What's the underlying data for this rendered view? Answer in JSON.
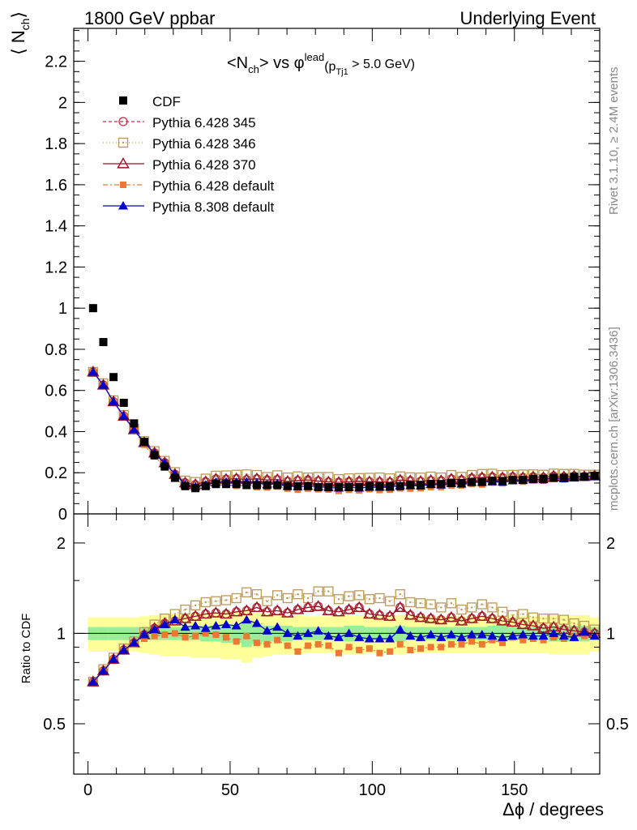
{
  "header": {
    "left": "1800 GeV ppbar",
    "right": "Underlying Event"
  },
  "side_labels": {
    "rivet": "Rivet 3.1.10, ≥ 2.4M events",
    "mcplots": "mcplots.cern.ch [arXiv:1306.3436]"
  },
  "chart_data": {
    "type": "scatter",
    "title": "<N_ch> vs φ^lead (p_Tj1 > 5.0 GeV)",
    "title_parts": {
      "a": "<N",
      "a_sub": "ch",
      "b": "> vs φ",
      "b_sup": "lead",
      "c": "(p",
      "c_sub": "Tj1",
      "d": " > 5.0 GeV)"
    },
    "ylabel": "⟨ N_ch ⟩",
    "ylabel_parts": {
      "main": "⟨ N",
      "sub": "ch",
      "close": "⟩"
    },
    "xlabel": "Δϕ / degrees",
    "ratio_ylabel": "Ratio to CDF",
    "xlim": [
      -5,
      180
    ],
    "ylim": [
      0,
      2.36
    ],
    "ratio_ylim": [
      0.34,
      2.5
    ],
    "ratio_log": true,
    "main_yticks": [
      "0",
      "0.2",
      "0.4",
      "0.6",
      "0.8",
      "1",
      "1.2",
      "1.4",
      "1.6",
      "1.8",
      "2",
      "2.2"
    ],
    "xticks": [
      "0",
      "50",
      "100",
      "150"
    ],
    "ratio_yticks": [
      "0.5",
      "1",
      "2"
    ],
    "x": [
      1.8,
      5.4,
      9.0,
      12.6,
      16.2,
      19.8,
      23.4,
      27.0,
      30.6,
      34.2,
      37.8,
      41.4,
      45.0,
      48.6,
      52.2,
      55.8,
      59.4,
      63.0,
      66.6,
      70.2,
      73.8,
      77.4,
      81.0,
      84.6,
      88.2,
      91.8,
      95.4,
      99.0,
      102.6,
      106.2,
      109.8,
      113.4,
      117.0,
      120.6,
      124.2,
      127.8,
      131.4,
      135.0,
      138.6,
      142.2,
      145.8,
      149.4,
      153.0,
      156.6,
      160.2,
      163.8,
      167.4,
      171.0,
      174.6,
      178.2
    ],
    "legend": {
      "position": "top-left",
      "entries": [
        "CDF",
        "Pythia 6.428 345",
        "Pythia 6.428 346",
        "Pythia 6.428 370",
        "Pythia 6.428 default",
        "Pythia 8.308 default"
      ]
    },
    "series": [
      {
        "name": "CDF",
        "color": "#000000",
        "marker": "filled-square",
        "values": [
          1.0,
          0.835,
          0.665,
          0.54,
          0.44,
          0.35,
          0.285,
          0.23,
          0.175,
          0.135,
          0.125,
          0.135,
          0.145,
          0.145,
          0.145,
          0.14,
          0.14,
          0.14,
          0.14,
          0.135,
          0.135,
          0.135,
          0.13,
          0.13,
          0.13,
          0.13,
          0.13,
          0.135,
          0.135,
          0.135,
          0.135,
          0.14,
          0.14,
          0.145,
          0.145,
          0.15,
          0.15,
          0.155,
          0.155,
          0.16,
          0.16,
          0.165,
          0.165,
          0.17,
          0.17,
          0.175,
          0.175,
          0.18,
          0.18,
          0.185
        ]
      },
      {
        "name": "Pythia 6.428 345",
        "color": "#bb3344",
        "marker": "open-circle",
        "dash": "4,3",
        "ratio": [
          0.69,
          0.75,
          0.82,
          0.88,
          0.93,
          0.99,
          1.04,
          1.08,
          1.1,
          1.12,
          1.14,
          1.16,
          1.17,
          1.16,
          1.18,
          1.19,
          1.22,
          1.18,
          1.19,
          1.17,
          1.2,
          1.22,
          1.23,
          1.19,
          1.18,
          1.2,
          1.22,
          1.16,
          1.15,
          1.14,
          1.22,
          1.15,
          1.13,
          1.12,
          1.11,
          1.13,
          1.1,
          1.12,
          1.14,
          1.12,
          1.1,
          1.09,
          1.07,
          1.06,
          1.04,
          1.05,
          1.03,
          1.02,
          1.01,
          1.0
        ]
      },
      {
        "name": "Pythia 6.428 346",
        "color": "#bb9955",
        "marker": "open-square-dot",
        "dash": "1,3",
        "ratio": [
          0.69,
          0.76,
          0.83,
          0.89,
          0.94,
          1.01,
          1.07,
          1.12,
          1.16,
          1.2,
          1.24,
          1.27,
          1.28,
          1.29,
          1.31,
          1.37,
          1.35,
          1.28,
          1.34,
          1.31,
          1.35,
          1.31,
          1.38,
          1.38,
          1.3,
          1.33,
          1.34,
          1.3,
          1.31,
          1.28,
          1.35,
          1.27,
          1.26,
          1.25,
          1.22,
          1.26,
          1.2,
          1.22,
          1.25,
          1.22,
          1.18,
          1.15,
          1.16,
          1.13,
          1.12,
          1.12,
          1.11,
          1.08,
          1.06,
          1.03
        ]
      },
      {
        "name": "Pythia 6.428 370",
        "color": "#991122",
        "marker": "open-triangle",
        "dash": "",
        "ratio": [
          0.69,
          0.75,
          0.82,
          0.88,
          0.93,
          0.99,
          1.04,
          1.08,
          1.1,
          1.12,
          1.14,
          1.16,
          1.17,
          1.16,
          1.18,
          1.19,
          1.22,
          1.18,
          1.19,
          1.17,
          1.2,
          1.22,
          1.23,
          1.19,
          1.18,
          1.2,
          1.22,
          1.16,
          1.15,
          1.14,
          1.22,
          1.15,
          1.13,
          1.12,
          1.11,
          1.13,
          1.1,
          1.12,
          1.14,
          1.12,
          1.1,
          1.09,
          1.07,
          1.06,
          1.04,
          1.05,
          1.03,
          1.02,
          1.01,
          1.0
        ]
      },
      {
        "name": "Pythia 6.428 default",
        "color": "#ee7733",
        "marker": "filled-small-square",
        "dash": "6,3,2,3",
        "ratio": [
          0.69,
          0.75,
          0.82,
          0.88,
          0.92,
          0.96,
          0.98,
          0.99,
          1.0,
          0.97,
          0.98,
          1.0,
          0.99,
          0.97,
          0.94,
          0.98,
          0.93,
          0.92,
          0.95,
          0.91,
          0.87,
          0.91,
          0.92,
          0.91,
          0.86,
          0.9,
          0.88,
          0.89,
          0.86,
          0.87,
          0.92,
          0.88,
          0.89,
          0.9,
          0.9,
          0.92,
          0.92,
          0.94,
          0.92,
          0.95,
          0.93,
          0.97,
          0.95,
          0.96,
          0.95,
          0.97,
          0.96,
          0.98,
          0.98,
          0.98
        ]
      },
      {
        "name": "Pythia 8.308 default",
        "color": "#0000cc",
        "marker": "filled-triangle",
        "dash": "",
        "ratio": [
          0.69,
          0.75,
          0.82,
          0.88,
          0.93,
          0.99,
          1.03,
          1.07,
          1.11,
          1.05,
          1.06,
          1.04,
          1.06,
          1.07,
          1.06,
          1.11,
          1.08,
          1.02,
          1.05,
          1.0,
          0.98,
          1.0,
          1.02,
          0.98,
          0.97,
          1.0,
          0.97,
          0.96,
          0.96,
          0.96,
          1.03,
          0.98,
          0.97,
          0.99,
          0.97,
          0.99,
          0.97,
          0.99,
          0.99,
          0.98,
          0.97,
          0.98,
          0.99,
          0.98,
          0.98,
          1.0,
          0.98,
          0.97,
          1.01,
          0.98
        ]
      }
    ],
    "ratio_band_inner": [
      0.05,
      0.05,
      0.05,
      0.05,
      0.05,
      0.05,
      0.05,
      0.05,
      0.05,
      0.05,
      0.05,
      0.06,
      0.06,
      0.07,
      0.07,
      0.1,
      0.08,
      0.06,
      0.06,
      0.06,
      0.05,
      0.05,
      0.05,
      0.05,
      0.05,
      0.06,
      0.06,
      0.05,
      0.05,
      0.05,
      0.06,
      0.05,
      0.05,
      0.05,
      0.05,
      0.05,
      0.05,
      0.05,
      0.05,
      0.06,
      0.06,
      0.05,
      0.05,
      0.05,
      0.05,
      0.06,
      0.06,
      0.06,
      0.06,
      0.05
    ],
    "ratio_band_outer": [
      0.13,
      0.13,
      0.13,
      0.13,
      0.13,
      0.14,
      0.15,
      0.16,
      0.16,
      0.16,
      0.17,
      0.17,
      0.17,
      0.18,
      0.18,
      0.2,
      0.17,
      0.16,
      0.15,
      0.15,
      0.15,
      0.14,
      0.14,
      0.14,
      0.14,
      0.15,
      0.15,
      0.14,
      0.14,
      0.14,
      0.15,
      0.14,
      0.14,
      0.14,
      0.14,
      0.14,
      0.14,
      0.14,
      0.14,
      0.14,
      0.14,
      0.14,
      0.14,
      0.14,
      0.14,
      0.15,
      0.15,
      0.15,
      0.15,
      0.13
    ],
    "band_colors": {
      "inner": "#99ee99",
      "outer": "#ffff99"
    }
  }
}
